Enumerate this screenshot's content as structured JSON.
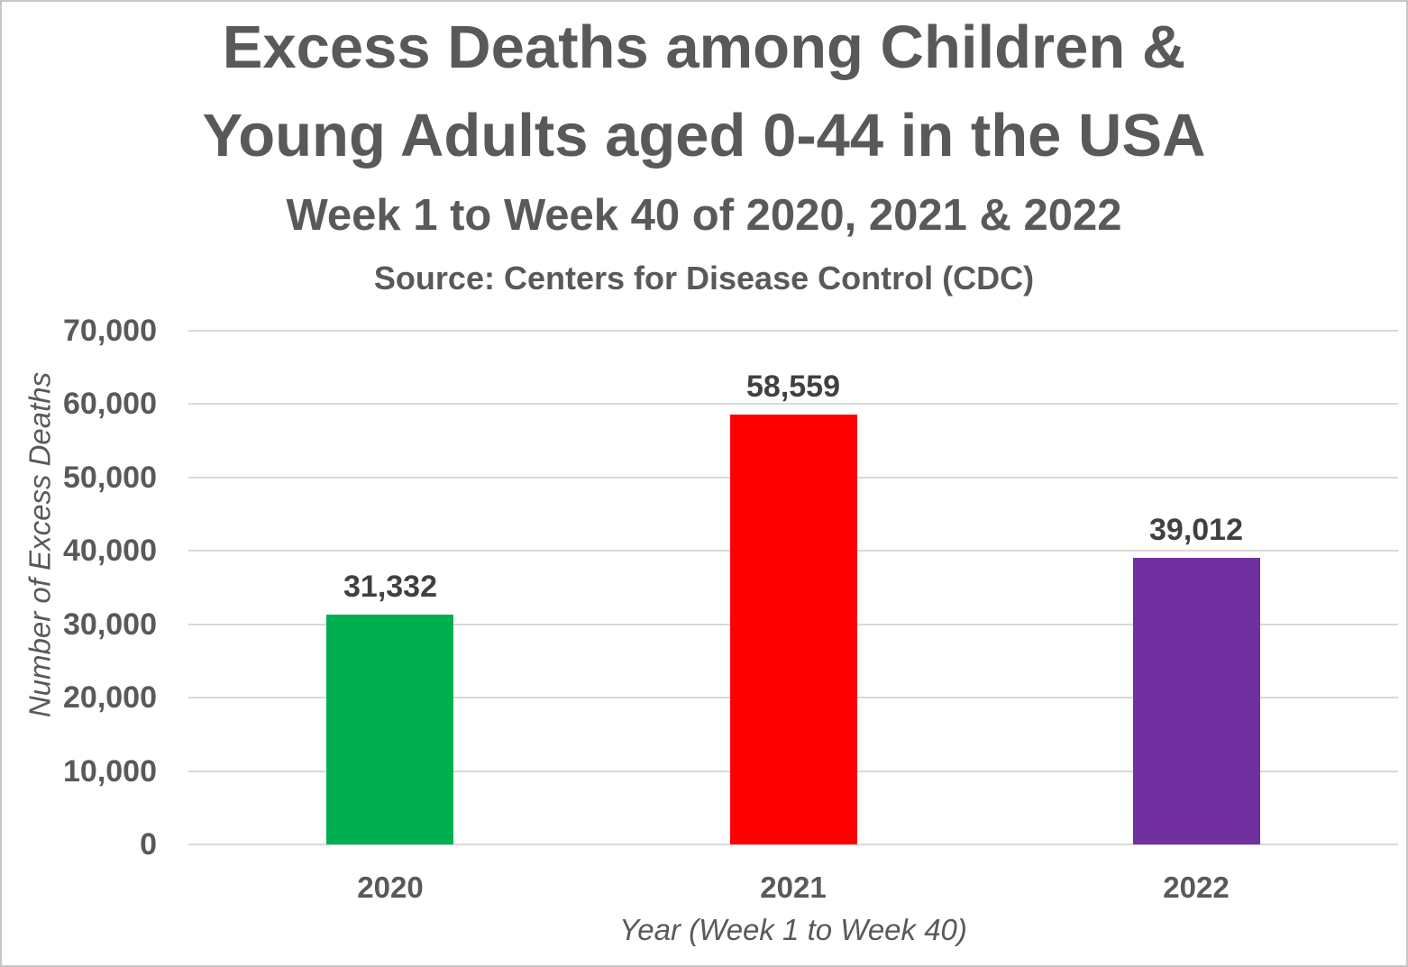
{
  "chart_data": {
    "type": "bar",
    "title": "Excess Deaths among Children & Young Adults aged 0-44 in the USA",
    "title_line1": "Excess Deaths among Children &",
    "title_line2": "Young Adults aged 0-44 in the USA",
    "subtitle": "Week 1 to Week 40 of 2020, 2021 & 2022",
    "source_note": "Source: Centers for Disease Control (CDC)",
    "categories": [
      "2020",
      "2021",
      "2022"
    ],
    "values": [
      31332,
      58559,
      39012
    ],
    "value_labels": [
      "31,332",
      "58,559",
      "39,012"
    ],
    "bar_colors": [
      "#00B050",
      "#FF0000",
      "#7030A0"
    ],
    "xlabel": "Year (Week 1 to Week 40)",
    "ylabel": "Number of Excess Deaths",
    "ylim": [
      0,
      70000
    ],
    "ytick_step": 10000,
    "ytick_labels": [
      "0",
      "10,000",
      "20,000",
      "30,000",
      "40,000",
      "50,000",
      "60,000",
      "70,000"
    ],
    "grid": true,
    "legend": "none",
    "colors": {
      "text": "#595959",
      "data_label": "#404040",
      "gridline": "#d9d9d9",
      "background": "#ffffff",
      "frame_border": "#c6c6c6"
    }
  }
}
